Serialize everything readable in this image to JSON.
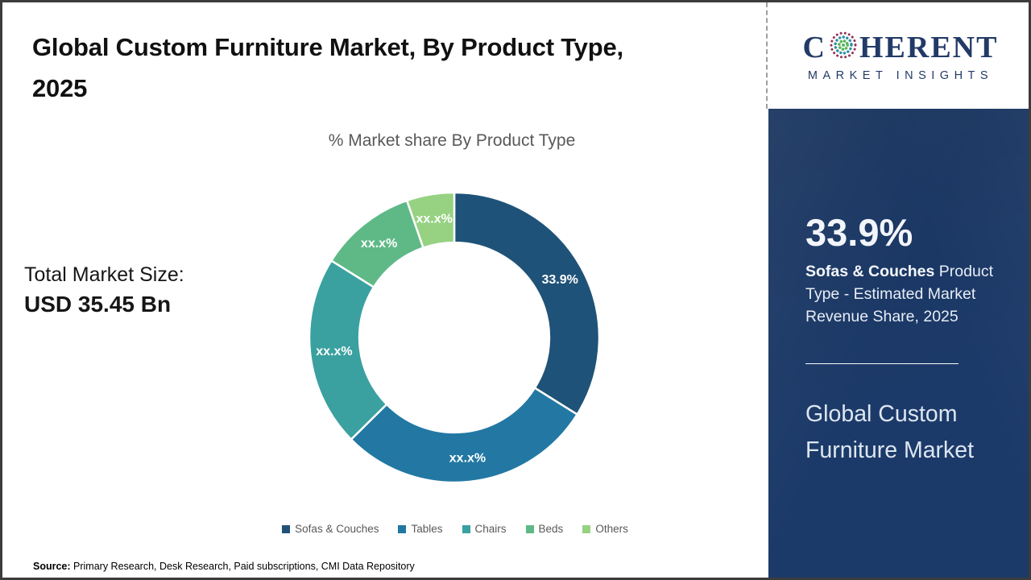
{
  "header": {
    "title": "Global Custom Furniture Market, By Product Type, 2025"
  },
  "total_market": {
    "label": "Total Market Size:",
    "value": "USD 35.45 Bn"
  },
  "source": {
    "label": "Source:",
    "text": " Primary Research, Desk Research, Paid subscriptions, CMI Data Repository"
  },
  "logo": {
    "word_start": "C",
    "word_end": "HERENT",
    "subtitle": "MARKET INSIGHTS",
    "text_color": "#223a67",
    "globe_icon": "dotted-globe"
  },
  "sidebar": {
    "background_color": "#1c3a69",
    "stat_value": "33.9%",
    "stat_bold": "Sofas & Couches",
    "stat_rest": " Product Type - Estimated Market Revenue Share, 2025",
    "panel_title": "Global Custom Furniture Market"
  },
  "chart_data": {
    "type": "pie",
    "donut": true,
    "title": "% Market share By Product Type",
    "categories": [
      "Sofas & Couches",
      "Tables",
      "Chairs",
      "Beds",
      "Others"
    ],
    "values": [
      33.9,
      28.7,
      21.3,
      10.8,
      5.3
    ],
    "display_labels": [
      "33.9%",
      "xx.x%",
      "xx.x%",
      "xx.x%",
      "xx.x%"
    ],
    "colors": [
      "#1f5278",
      "#2278a3",
      "#3aa1a0",
      "#5eb987",
      "#96d282"
    ],
    "inner_radius_ratio": 0.655,
    "start_angle_deg": 0,
    "direction": "clockwise",
    "legend_position": "bottom",
    "label_color": "#ffffff"
  }
}
